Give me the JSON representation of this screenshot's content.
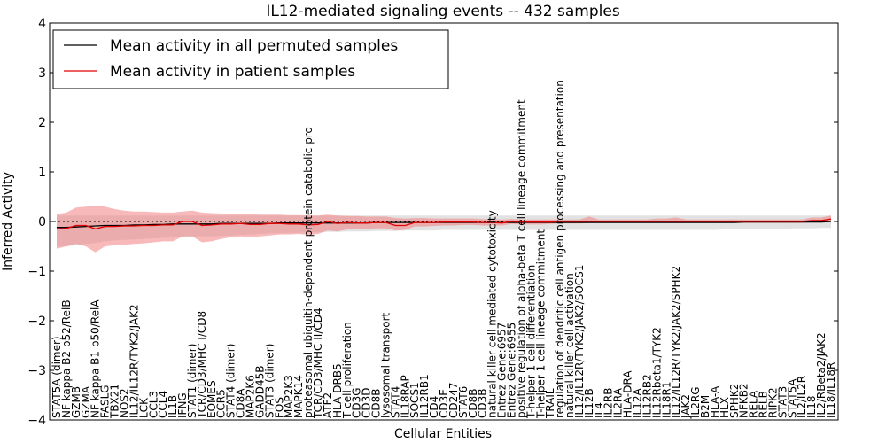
{
  "chart_data": {
    "type": "line",
    "title": "IL12-mediated signaling events -- 432 samples",
    "xlabel": "Cellular Entities",
    "ylabel": "Inferred Activity",
    "ylim": [
      -4,
      4
    ],
    "yticks": [
      -4,
      -3,
      -2,
      -1,
      0,
      1,
      2,
      3,
      4
    ],
    "grid": false,
    "legend_position": "top-left",
    "colors": {
      "permuted_line": "#000000",
      "permuted_band": "#bfbfbf",
      "patient_line": "#e00000",
      "patient_band": "#f08080",
      "zero_line": "#000000"
    },
    "categories": [
      "STAT5A (dimer)",
      "NF kappa B2 p52/RelB",
      "GZMB",
      "GZMA",
      "NF kappa B1 p50/RelA",
      "FASLG",
      "TBX21",
      "NOS2",
      "IL12/IL12R/TYK2/JAK2",
      "LCK",
      "CCL3",
      "CCL4",
      "IL1B",
      "IFNG",
      "STAT1 (dimer)",
      "TCR/CD3/MHC I/CD8",
      "EOMES",
      "CCR5",
      "STAT4 (dimer)",
      "CD8A",
      "MAP2K6",
      "GADD45B",
      "STAT3 (dimer)",
      "FOS",
      "MAP2K3",
      "MAPK14",
      "proteasomal ubiquitin-dependent protein catabolic pro",
      "TCR/CD3/MHC II/CD4",
      "ATF2",
      "HLA-DRB5",
      "T cell proliferation",
      "CD3G",
      "CD3D",
      "CD8B",
      "lysosomal transport",
      "STAT4",
      "IL18RAP",
      "SOCS1",
      "IL12RB1",
      "CD4",
      "CD3E",
      "CD247",
      "STAT6",
      "CD8B",
      "CD3B",
      "natural killer cell mediated cytotoxicity",
      "Entrez Gene:6957",
      "Entrez Gene:6955",
      "positive regulation of alpha-beta T cell lineage commitment",
      "T-helper 1 cell differentiation",
      "T-helper 1 cell lineage commitment",
      "TRAIL",
      "regulation of dendritic cell antigen processing and presentation",
      "natural killer cell activation",
      "IL12/IL12R/TYK2/JAK2/SOCS1",
      "IL12B",
      "IL4",
      "IL2RB",
      "IL2RA",
      "HLA-DRA",
      "IL12A",
      "IL12RB2",
      "IL12Rbeta1/TYK2",
      "IL18R1",
      "IL12/IL12R/TYK2/JAK2/SPHK2",
      "JAK2",
      "IL2RG",
      "B2M",
      "HLA-A",
      "HLX",
      "SPHK2",
      "NFKB2",
      "RELA",
      "RELB",
      "RIPK2",
      "STAT3",
      "STAT5A",
      "IL2/IL2R",
      "IL18",
      "IL2/RBeta2/JAK2",
      "IL18/IL18R"
    ],
    "series": [
      {
        "name": "Mean activity in all permuted samples",
        "values": [
          -0.12,
          -0.12,
          -0.11,
          -0.1,
          -0.09,
          -0.08,
          -0.08,
          -0.08,
          -0.07,
          -0.07,
          -0.06,
          -0.06,
          -0.05,
          -0.05,
          -0.05,
          -0.05,
          -0.05,
          -0.04,
          -0.04,
          -0.04,
          -0.04,
          -0.04,
          -0.04,
          -0.03,
          -0.03,
          -0.03,
          -0.03,
          -0.03,
          -0.03,
          -0.03,
          -0.03,
          -0.03,
          -0.03,
          -0.02,
          -0.02,
          -0.02,
          -0.02,
          -0.02,
          -0.02,
          -0.02,
          -0.02,
          -0.02,
          -0.02,
          -0.02,
          -0.02,
          -0.02,
          -0.02,
          -0.02,
          -0.02,
          -0.02,
          -0.02,
          -0.02,
          -0.02,
          -0.02,
          -0.02,
          -0.02,
          -0.02,
          -0.02,
          -0.02,
          -0.02,
          -0.02,
          -0.02,
          -0.02,
          -0.02,
          -0.02,
          -0.02,
          -0.02,
          -0.02,
          -0.02,
          -0.02,
          -0.02,
          -0.01,
          -0.01,
          -0.01,
          -0.01,
          -0.01,
          -0.01,
          -0.01,
          -0.01,
          -0.01,
          0.0
        ],
        "lower": [
          -0.5,
          -0.5,
          -0.48,
          -0.45,
          -0.43,
          -0.4,
          -0.38,
          -0.37,
          -0.36,
          -0.35,
          -0.34,
          -0.33,
          -0.32,
          -0.31,
          -0.3,
          -0.3,
          -0.3,
          -0.29,
          -0.28,
          -0.27,
          -0.26,
          -0.25,
          -0.24,
          -0.24,
          -0.23,
          -0.23,
          -0.22,
          -0.22,
          -0.21,
          -0.21,
          -0.2,
          -0.2,
          -0.2,
          -0.19,
          -0.19,
          -0.19,
          -0.18,
          -0.18,
          -0.18,
          -0.18,
          -0.17,
          -0.17,
          -0.17,
          -0.17,
          -0.17,
          -0.17,
          -0.17,
          -0.17,
          -0.17,
          -0.17,
          -0.17,
          -0.17,
          -0.17,
          -0.17,
          -0.17,
          -0.17,
          -0.17,
          -0.17,
          -0.17,
          -0.17,
          -0.17,
          -0.17,
          -0.17,
          -0.17,
          -0.17,
          -0.17,
          -0.17,
          -0.17,
          -0.17,
          -0.16,
          -0.16,
          -0.16,
          -0.15,
          -0.15,
          -0.15,
          -0.15,
          -0.14,
          -0.14,
          -0.14,
          -0.13,
          -0.13
        ],
        "upper": [
          0.12,
          0.12,
          0.12,
          0.12,
          0.12,
          0.12,
          0.12,
          0.12,
          0.12,
          0.12,
          0.12,
          0.12,
          0.12,
          0.12,
          0.12,
          0.12,
          0.12,
          0.12,
          0.12,
          0.12,
          0.12,
          0.12,
          0.12,
          0.12,
          0.12,
          0.12,
          0.12,
          0.12,
          0.12,
          0.12,
          0.12,
          0.12,
          0.12,
          0.12,
          0.12,
          0.12,
          0.12,
          0.12,
          0.12,
          0.12,
          0.12,
          0.12,
          0.12,
          0.12,
          0.12,
          0.12,
          0.12,
          0.12,
          0.12,
          0.12,
          0.12,
          0.12,
          0.12,
          0.12,
          0.12,
          0.12,
          0.12,
          0.12,
          0.12,
          0.12,
          0.12,
          0.12,
          0.12,
          0.12,
          0.12,
          0.12,
          0.12,
          0.12,
          0.12,
          0.12,
          0.12,
          0.12,
          0.12,
          0.12,
          0.12,
          0.12,
          0.12,
          0.12,
          0.12,
          0.12,
          0.12
        ]
      },
      {
        "name": "Mean activity in patient samples",
        "values": [
          -0.15,
          -0.14,
          -0.08,
          -0.08,
          -0.15,
          -0.1,
          -0.1,
          -0.09,
          -0.09,
          -0.08,
          -0.08,
          -0.07,
          -0.07,
          0.0,
          0.0,
          -0.08,
          -0.07,
          -0.05,
          -0.05,
          -0.04,
          -0.06,
          -0.06,
          -0.04,
          -0.04,
          -0.05,
          -0.05,
          -0.07,
          -0.06,
          0.0,
          -0.04,
          -0.02,
          -0.03,
          -0.03,
          -0.02,
          -0.02,
          -0.08,
          -0.08,
          -0.02,
          -0.02,
          -0.02,
          -0.01,
          -0.01,
          -0.01,
          -0.01,
          -0.02,
          -0.02,
          -0.03,
          0.0,
          -0.01,
          -0.01,
          -0.01,
          -0.01,
          0.0,
          0.0,
          0.0,
          0.0,
          0.0,
          0.0,
          0.0,
          0.0,
          0.0,
          0.0,
          0.0,
          0.0,
          0.0,
          0.0,
          0.0,
          0.0,
          0.0,
          0.0,
          0.0,
          0.0,
          0.0,
          0.0,
          0.0,
          0.0,
          0.0,
          0.0,
          0.02,
          0.02,
          0.05
        ],
        "lower": [
          -0.55,
          -0.5,
          -0.45,
          -0.5,
          -0.62,
          -0.5,
          -0.48,
          -0.47,
          -0.45,
          -0.44,
          -0.42,
          -0.4,
          -0.4,
          -0.3,
          -0.3,
          -0.42,
          -0.4,
          -0.35,
          -0.32,
          -0.3,
          -0.32,
          -0.3,
          -0.28,
          -0.26,
          -0.26,
          -0.25,
          -0.27,
          -0.25,
          -0.18,
          -0.2,
          -0.16,
          -0.16,
          -0.15,
          -0.14,
          -0.14,
          -0.18,
          -0.17,
          -0.1,
          -0.1,
          -0.09,
          -0.08,
          -0.08,
          -0.07,
          -0.07,
          -0.08,
          -0.08,
          -0.08,
          -0.05,
          -0.06,
          -0.06,
          -0.06,
          -0.05,
          -0.04,
          -0.04,
          -0.04,
          -0.03,
          -0.03,
          -0.03,
          -0.03,
          -0.03,
          -0.03,
          -0.03,
          -0.03,
          -0.03,
          -0.03,
          -0.03,
          -0.03,
          -0.03,
          -0.03,
          -0.03,
          -0.03,
          -0.03,
          -0.03,
          -0.03,
          -0.03,
          -0.03,
          -0.03,
          -0.03,
          -0.02,
          -0.02,
          -0.02
        ],
        "upper": [
          0.15,
          0.18,
          0.28,
          0.3,
          0.32,
          0.3,
          0.25,
          0.22,
          0.2,
          0.2,
          0.19,
          0.18,
          0.18,
          0.2,
          0.22,
          0.18,
          0.17,
          0.16,
          0.15,
          0.15,
          0.15,
          0.14,
          0.14,
          0.14,
          0.13,
          0.13,
          0.12,
          0.12,
          0.14,
          0.12,
          0.11,
          0.11,
          0.1,
          0.1,
          0.1,
          0.07,
          0.06,
          0.07,
          0.07,
          0.06,
          0.06,
          0.06,
          0.06,
          0.06,
          0.05,
          0.05,
          0.04,
          0.05,
          0.04,
          0.04,
          0.04,
          0.04,
          0.04,
          0.04,
          0.04,
          0.1,
          0.04,
          0.04,
          0.04,
          0.04,
          0.04,
          0.04,
          0.06,
          0.06,
          0.08,
          0.04,
          0.04,
          0.04,
          0.04,
          0.04,
          0.04,
          0.04,
          0.04,
          0.04,
          0.04,
          0.04,
          0.04,
          0.04,
          0.08,
          0.08,
          0.12
        ]
      }
    ]
  }
}
